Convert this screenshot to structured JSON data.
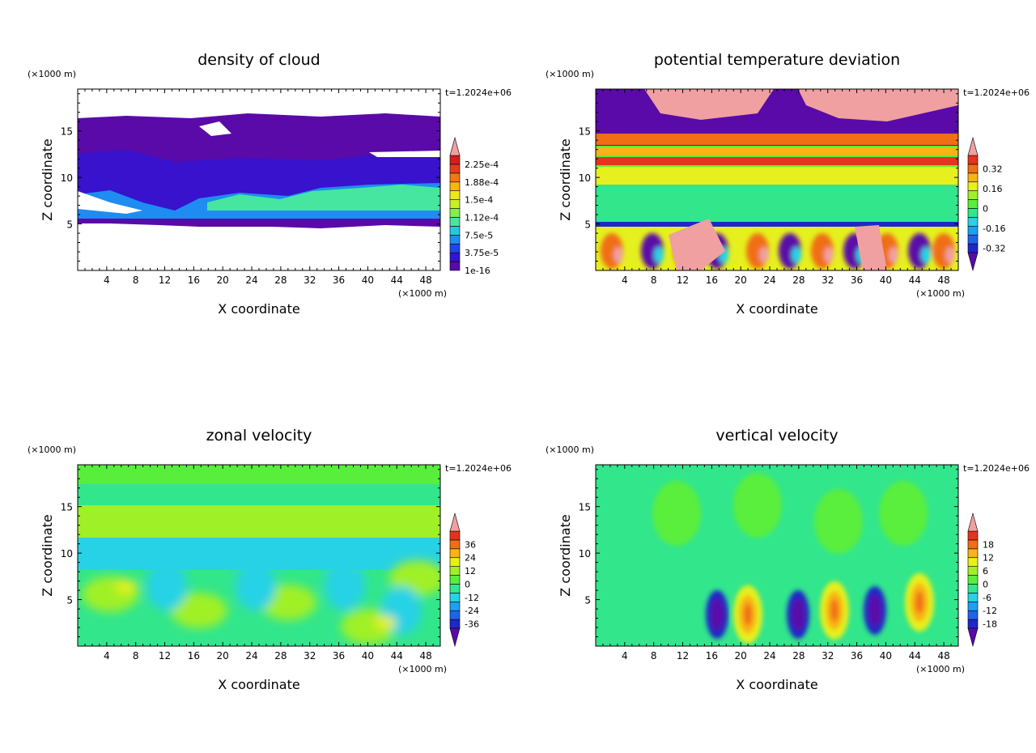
{
  "chart_data": [
    {
      "type": "heatmap",
      "title": "density of cloud",
      "xlabel": "X coordinate",
      "ylabel": "Z coordinate",
      "x_unit": "(×1000 m)",
      "y_unit": "(×1000 m)",
      "time_label": "t=1.2024e+06",
      "xlim": [
        0,
        50
      ],
      "ylim": [
        0,
        19.5
      ],
      "x_ticks": [
        "4",
        "8",
        "12",
        "16",
        "20",
        "24",
        "28",
        "32",
        "36",
        "40",
        "44",
        "48"
      ],
      "y_ticks": [
        "5",
        "10",
        "15"
      ],
      "colorbar_labels": [
        "1e-16",
        "3.75e-5",
        "7.5e-5",
        "1.12e-4",
        "1.5e-4",
        "1.88e-4",
        "2.25e-4"
      ],
      "colorbar_colors": [
        "#5a0aa8",
        "#3214d2",
        "#1e46e6",
        "#1e8cf0",
        "#28c8dc",
        "#46e6a0",
        "#82f050",
        "#c8f028",
        "#f0e61e",
        "#f8b414",
        "#f07814",
        "#e63c1e",
        "#d21e1e",
        "#f0a0a0"
      ],
      "colorbar_extend": "max"
    },
    {
      "type": "heatmap",
      "title": "potential temperature deviation",
      "xlabel": "X coordinate",
      "ylabel": "Z coordinate",
      "x_unit": "(×1000 m)",
      "y_unit": "(×1000 m)",
      "time_label": "t=1.2024e+06",
      "xlim": [
        0,
        50
      ],
      "ylim": [
        0,
        19.5
      ],
      "x_ticks": [
        "4",
        "8",
        "12",
        "16",
        "20",
        "24",
        "28",
        "32",
        "36",
        "40",
        "44",
        "48"
      ],
      "y_ticks": [
        "5",
        "10",
        "15"
      ],
      "colorbar_labels": [
        "-0.32",
        "-0.16",
        "0",
        "0.16",
        "0.32"
      ],
      "colorbar_colors": [
        "#5a0aa8",
        "#1e28c8",
        "#1e64e6",
        "#1ea0f0",
        "#28d2e6",
        "#32e68c",
        "#5aee3c",
        "#a0f028",
        "#e6f01e",
        "#f8b414",
        "#f06e14",
        "#e6321e",
        "#f0a0a0"
      ],
      "colorbar_extend": "both"
    },
    {
      "type": "heatmap",
      "title": "zonal velocity",
      "xlabel": "X coordinate",
      "ylabel": "Z coordinate",
      "x_unit": "(×1000 m)",
      "y_unit": "(×1000 m)",
      "time_label": "t=1.2024e+06",
      "xlim": [
        0,
        50
      ],
      "ylim": [
        0,
        19.5
      ],
      "x_ticks": [
        "4",
        "8",
        "12",
        "16",
        "20",
        "24",
        "28",
        "32",
        "36",
        "40",
        "44",
        "48"
      ],
      "y_ticks": [
        "5",
        "10",
        "15"
      ],
      "colorbar_labels": [
        "-36",
        "-24",
        "-12",
        "0",
        "12",
        "24",
        "36"
      ],
      "colorbar_colors": [
        "#5a0aa8",
        "#1e28c8",
        "#1e64e6",
        "#1ea0f0",
        "#28d2e6",
        "#32e68c",
        "#5aee3c",
        "#a0f028",
        "#e6f01e",
        "#f8b414",
        "#f06e14",
        "#e6321e",
        "#f0a0a0"
      ],
      "colorbar_extend": "both"
    },
    {
      "type": "heatmap",
      "title": "vertical velocity",
      "xlabel": "X coordinate",
      "ylabel": "Z coordinate",
      "x_unit": "(×1000 m)",
      "y_unit": "(×1000 m)",
      "time_label": "t=1.2024e+06",
      "xlim": [
        0,
        50
      ],
      "ylim": [
        0,
        19.5
      ],
      "x_ticks": [
        "4",
        "8",
        "12",
        "16",
        "20",
        "24",
        "28",
        "32",
        "36",
        "40",
        "44",
        "48"
      ],
      "y_ticks": [
        "5",
        "10",
        "15"
      ],
      "colorbar_labels": [
        "-18",
        "-12",
        "-6",
        "0",
        "6",
        "12",
        "18"
      ],
      "colorbar_colors": [
        "#5a0aa8",
        "#1e28c8",
        "#1e64e6",
        "#1ea0f0",
        "#28d2e6",
        "#32e68c",
        "#5aee3c",
        "#a0f028",
        "#e6f01e",
        "#f8b414",
        "#f06e14",
        "#e6321e",
        "#f0a0a0"
      ],
      "colorbar_extend": "both"
    }
  ]
}
